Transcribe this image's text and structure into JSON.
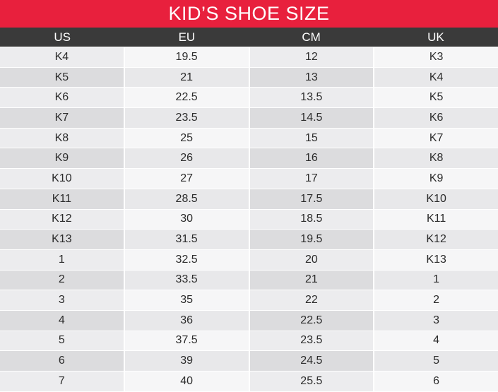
{
  "title": "KID’S SHOE SIZE",
  "columns": [
    "US",
    "EU",
    "CM",
    "UK"
  ],
  "rows": [
    [
      "K4",
      "19.5",
      "12",
      "K3"
    ],
    [
      "K5",
      "21",
      "13",
      "K4"
    ],
    [
      "K6",
      "22.5",
      "13.5",
      "K5"
    ],
    [
      "K7",
      "23.5",
      "14.5",
      "K6"
    ],
    [
      "K8",
      "25",
      "15",
      "K7"
    ],
    [
      "K9",
      "26",
      "16",
      "K8"
    ],
    [
      "K10",
      "27",
      "17",
      "K9"
    ],
    [
      "K11",
      "28.5",
      "17.5",
      "K10"
    ],
    [
      "K12",
      "30",
      "18.5",
      "K11"
    ],
    [
      "K13",
      "31.5",
      "19.5",
      "K12"
    ],
    [
      "1",
      "32.5",
      "20",
      "K13"
    ],
    [
      "2",
      "33.5",
      "21",
      "1"
    ],
    [
      "3",
      "35",
      "22",
      "2"
    ],
    [
      "4",
      "36",
      "22.5",
      "3"
    ],
    [
      "5",
      "37.5",
      "23.5",
      "4"
    ],
    [
      "6",
      "39",
      "24.5",
      "5"
    ],
    [
      "7",
      "40",
      "25.5",
      "6"
    ]
  ],
  "colors": {
    "title_bg": "#e8203d",
    "header_bg": "#3a3a3a"
  }
}
